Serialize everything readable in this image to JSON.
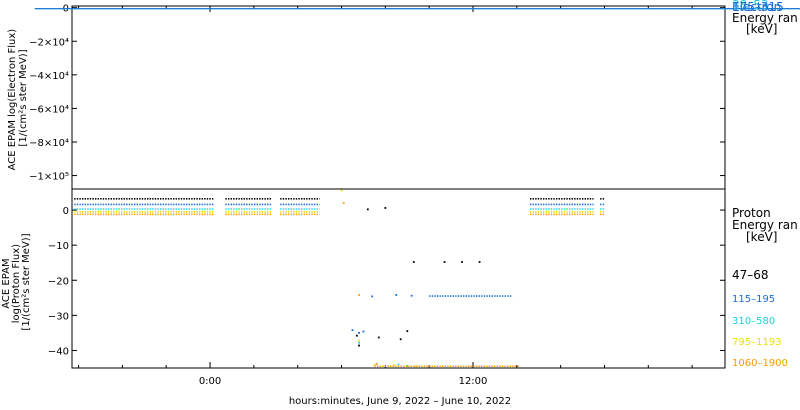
{
  "colors": {
    "black": "#000000",
    "blue": "#1a6fd6",
    "cyan": "#20d0dc",
    "yellow": "#e8e400",
    "orange": "#ff9a00"
  },
  "chart_data": [
    {
      "type": "scatter",
      "panel": "top",
      "ylabel_lines": [
        "ACE EPAM log(Electron Flux)",
        "[1/(cm²s ster MeV)]"
      ],
      "yticks": [
        "0",
        "−2×10⁴",
        "−4×10⁴",
        "−6×10⁴",
        "−8×10⁴",
        "−1×10⁵"
      ],
      "ytick_values": [
        0,
        -20000,
        -40000,
        -60000,
        -80000,
        -100000
      ],
      "ylim": [
        -108000,
        1000
      ],
      "legend_lines": [
        "Electron",
        "Energy ran",
        "[keV]"
      ],
      "overlapping_entries": [
        "38–53",
        "175–315"
      ],
      "series": [
        {
          "name": "38–53",
          "color_key": "cyan",
          "x": [
            -8,
            28.4
          ],
          "y": [
            0,
            0
          ]
        },
        {
          "name": "175–315",
          "color_key": "blue",
          "x": [
            -8,
            28.4
          ],
          "y": [
            0,
            0
          ]
        }
      ]
    },
    {
      "type": "scatter",
      "panel": "bottom",
      "ylabel_lines": [
        "ACE EPAM",
        "log(Proton Flux)",
        "[1/(cm²s ster MeV)]"
      ],
      "yticks": [
        "0",
        "−10",
        "−20",
        "−30",
        "−40"
      ],
      "ytick_values": [
        0,
        -10,
        -20,
        -30,
        -40
      ],
      "ylim": [
        -45,
        6
      ],
      "xlabel": "hours:minutes, June  9, 2022 – June 10, 2022",
      "xticks": [
        "0:00",
        "12:00"
      ],
      "xtick_values": [
        0,
        12
      ],
      "xlim": [
        -6.3,
        23.5
      ],
      "legend_lines": [
        "Proton",
        "Energy ran",
        "[keV]"
      ],
      "series": [
        {
          "name": "47–68",
          "color_key": "black",
          "segments": [
            [
              -6.2,
              0.2,
              3.2
            ],
            [
              0.7,
              2.8,
              3.2
            ],
            [
              3.2,
              5.0,
              3.2
            ],
            [
              14.6,
              17.5,
              3.2
            ],
            [
              17.8,
              18.0,
              3.2
            ]
          ],
          "points": [
            [
              7.2,
              0.2
            ],
            [
              8.0,
              0.6
            ],
            [
              9.3,
              -14.8
            ],
            [
              10.7,
              -14.8
            ],
            [
              11.5,
              -14.8
            ],
            [
              12.3,
              -14.8
            ],
            [
              6.7,
              -35.8
            ],
            [
              7.7,
              -36.3
            ],
            [
              8.7,
              -36.8
            ],
            [
              9.0,
              -34.5
            ],
            [
              6.8,
              -38.6
            ]
          ]
        },
        {
          "name": "115–195",
          "color_key": "blue",
          "segments": [
            [
              -6.2,
              0.2,
              1.6
            ],
            [
              0.7,
              2.8,
              1.6
            ],
            [
              3.2,
              5.0,
              1.6
            ],
            [
              14.6,
              17.5,
              1.6
            ],
            [
              17.8,
              18.0,
              1.6
            ],
            [
              10.0,
              13.8,
              -24.5
            ]
          ],
          "points": [
            [
              6.8,
              -35.0
            ],
            [
              7.0,
              -34.6
            ],
            [
              8.5,
              -24.2
            ],
            [
              9.2,
              -24.4
            ],
            [
              7.4,
              -24.6
            ],
            [
              6.5,
              -34.2
            ]
          ]
        },
        {
          "name": "310–580",
          "color_key": "cyan",
          "segments": [
            [
              -6.2,
              0.2,
              0.3
            ],
            [
              0.7,
              2.8,
              0.3
            ],
            [
              3.2,
              5.0,
              0.3
            ],
            [
              14.6,
              17.5,
              0.3
            ],
            [
              17.8,
              18.0,
              0.3
            ]
          ],
          "points": [
            [
              6.8,
              -37.8
            ],
            [
              7.6,
              -43.8
            ],
            [
              9.0,
              -44.4
            ],
            [
              8.6,
              -44.0
            ]
          ]
        },
        {
          "name": "795–1193",
          "color_key": "yellow",
          "segments": [
            [
              -6.2,
              0.2,
              -0.5
            ],
            [
              0.7,
              2.8,
              -0.5
            ],
            [
              3.2,
              5.0,
              -0.5
            ],
            [
              14.6,
              17.5,
              -0.5
            ],
            [
              17.8,
              18.0,
              -0.5
            ]
          ],
          "points": [
            [
              6.0,
              5.6
            ],
            [
              6.8,
              -37.2
            ],
            [
              7.5,
              -44.2
            ],
            [
              8.4,
              -44.2
            ],
            [
              9.4,
              -44.5
            ]
          ]
        },
        {
          "name": "1060–1900",
          "color_key": "orange",
          "segments": [
            [
              -6.2,
              0.2,
              -1.2
            ],
            [
              0.7,
              2.8,
              -1.2
            ],
            [
              3.2,
              5.0,
              -1.2
            ],
            [
              14.6,
              17.5,
              -1.2
            ],
            [
              17.8,
              18.0,
              -1.2
            ],
            [
              7.5,
              14.1,
              -44.5
            ]
          ],
          "points": [
            [
              6.8,
              -24.2
            ],
            [
              7.6,
              -43.9
            ],
            [
              6.1,
              2.0
            ]
          ]
        }
      ]
    }
  ]
}
